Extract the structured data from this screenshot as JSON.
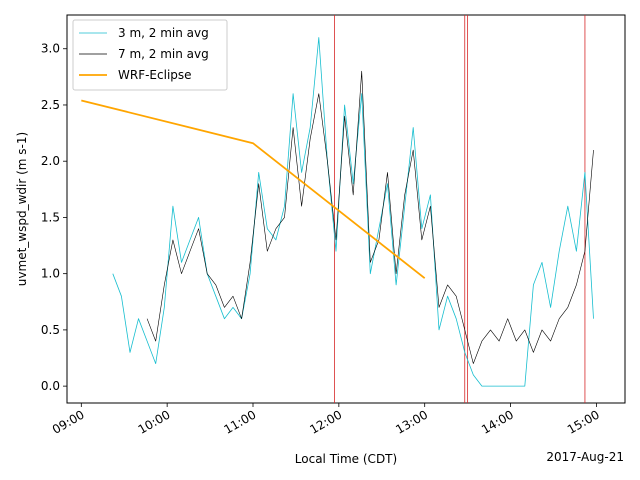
{
  "chart_data": {
    "type": "line",
    "xlabel": "Local Time (CDT)",
    "ylabel": "uvmet_wspd_wdir (m s-1)",
    "date_label": "2017-Aug-21",
    "xlim": [
      "08:50",
      "15:20"
    ],
    "ylim": [
      -0.15,
      3.3
    ],
    "x_ticks": [
      "09:00",
      "10:00",
      "11:00",
      "12:00",
      "13:00",
      "14:00",
      "15:00"
    ],
    "y_ticks": [
      "0.0",
      "0.5",
      "1.0",
      "1.5",
      "2.0",
      "2.5",
      "3.0"
    ],
    "grid": false,
    "legend_position": "top-left",
    "vertical_markers": [
      "11:57",
      "13:28",
      "13:30",
      "14:52"
    ],
    "colors": {
      "series_3m": "#17becf",
      "series_7m": "#000000",
      "series_wrf": "#ffa500",
      "markers": "#d62728"
    },
    "series": [
      {
        "name": "3 m, 2 min avg",
        "x": [
          "09:22",
          "09:28",
          "09:34",
          "09:40",
          "09:46",
          "09:52",
          "09:58",
          "10:04",
          "10:10",
          "10:16",
          "10:22",
          "10:28",
          "10:34",
          "10:40",
          "10:46",
          "10:52",
          "10:58",
          "11:04",
          "11:10",
          "11:16",
          "11:22",
          "11:28",
          "11:34",
          "11:40",
          "11:46",
          "11:52",
          "11:58",
          "12:04",
          "12:10",
          "12:16",
          "12:22",
          "12:28",
          "12:34",
          "12:40",
          "12:46",
          "12:52",
          "12:58",
          "13:04",
          "13:10",
          "13:16",
          "13:22",
          "13:28",
          "13:34",
          "13:40",
          "13:46",
          "13:52",
          "13:58",
          "14:04",
          "14:10",
          "14:16",
          "14:22",
          "14:28",
          "14:34",
          "14:40",
          "14:46",
          "14:52",
          "14:58"
        ],
        "values": [
          1.0,
          0.8,
          0.3,
          0.6,
          0.4,
          0.2,
          0.7,
          1.6,
          1.1,
          1.3,
          1.5,
          1.0,
          0.8,
          0.6,
          0.7,
          0.6,
          1.0,
          1.9,
          1.4,
          1.3,
          1.6,
          2.6,
          1.9,
          2.3,
          3.1,
          2.0,
          1.2,
          2.5,
          1.8,
          2.6,
          1.0,
          1.4,
          1.8,
          0.9,
          1.6,
          2.3,
          1.4,
          1.7,
          0.5,
          0.8,
          0.6,
          0.3,
          0.1,
          0.0,
          0.0,
          0.0,
          0.0,
          0.0,
          0.0,
          0.9,
          1.1,
          0.7,
          1.2,
          1.6,
          1.2,
          1.9,
          0.6
        ]
      },
      {
        "name": "7 m, 2 min avg",
        "x": [
          "09:46",
          "09:52",
          "09:58",
          "10:04",
          "10:10",
          "10:16",
          "10:22",
          "10:28",
          "10:34",
          "10:40",
          "10:46",
          "10:52",
          "10:58",
          "11:04",
          "11:10",
          "11:16",
          "11:22",
          "11:28",
          "11:34",
          "11:40",
          "11:46",
          "11:52",
          "11:58",
          "12:04",
          "12:10",
          "12:16",
          "12:22",
          "12:28",
          "12:34",
          "12:40",
          "12:46",
          "12:52",
          "12:58",
          "13:04",
          "13:10",
          "13:16",
          "13:22",
          "13:28",
          "13:34",
          "13:40",
          "13:46",
          "13:52",
          "13:58",
          "14:04",
          "14:10",
          "14:16",
          "14:22",
          "14:28",
          "14:34",
          "14:40",
          "14:46",
          "14:52",
          "14:58"
        ],
        "values": [
          0.6,
          0.4,
          0.9,
          1.3,
          1.0,
          1.2,
          1.4,
          1.0,
          0.9,
          0.7,
          0.8,
          0.6,
          1.1,
          1.8,
          1.2,
          1.4,
          1.5,
          2.3,
          1.6,
          2.2,
          2.6,
          2.0,
          1.3,
          2.4,
          1.7,
          2.8,
          1.1,
          1.3,
          1.9,
          1.0,
          1.7,
          2.1,
          1.3,
          1.6,
          0.7,
          0.9,
          0.8,
          0.5,
          0.2,
          0.4,
          0.5,
          0.4,
          0.6,
          0.4,
          0.5,
          0.3,
          0.5,
          0.4,
          0.6,
          0.7,
          0.9,
          1.2,
          2.1
        ]
      },
      {
        "name": "WRF-Eclipse",
        "x": [
          "09:00",
          "11:00",
          "13:00"
        ],
        "values": [
          2.54,
          2.16,
          0.96
        ]
      }
    ]
  }
}
